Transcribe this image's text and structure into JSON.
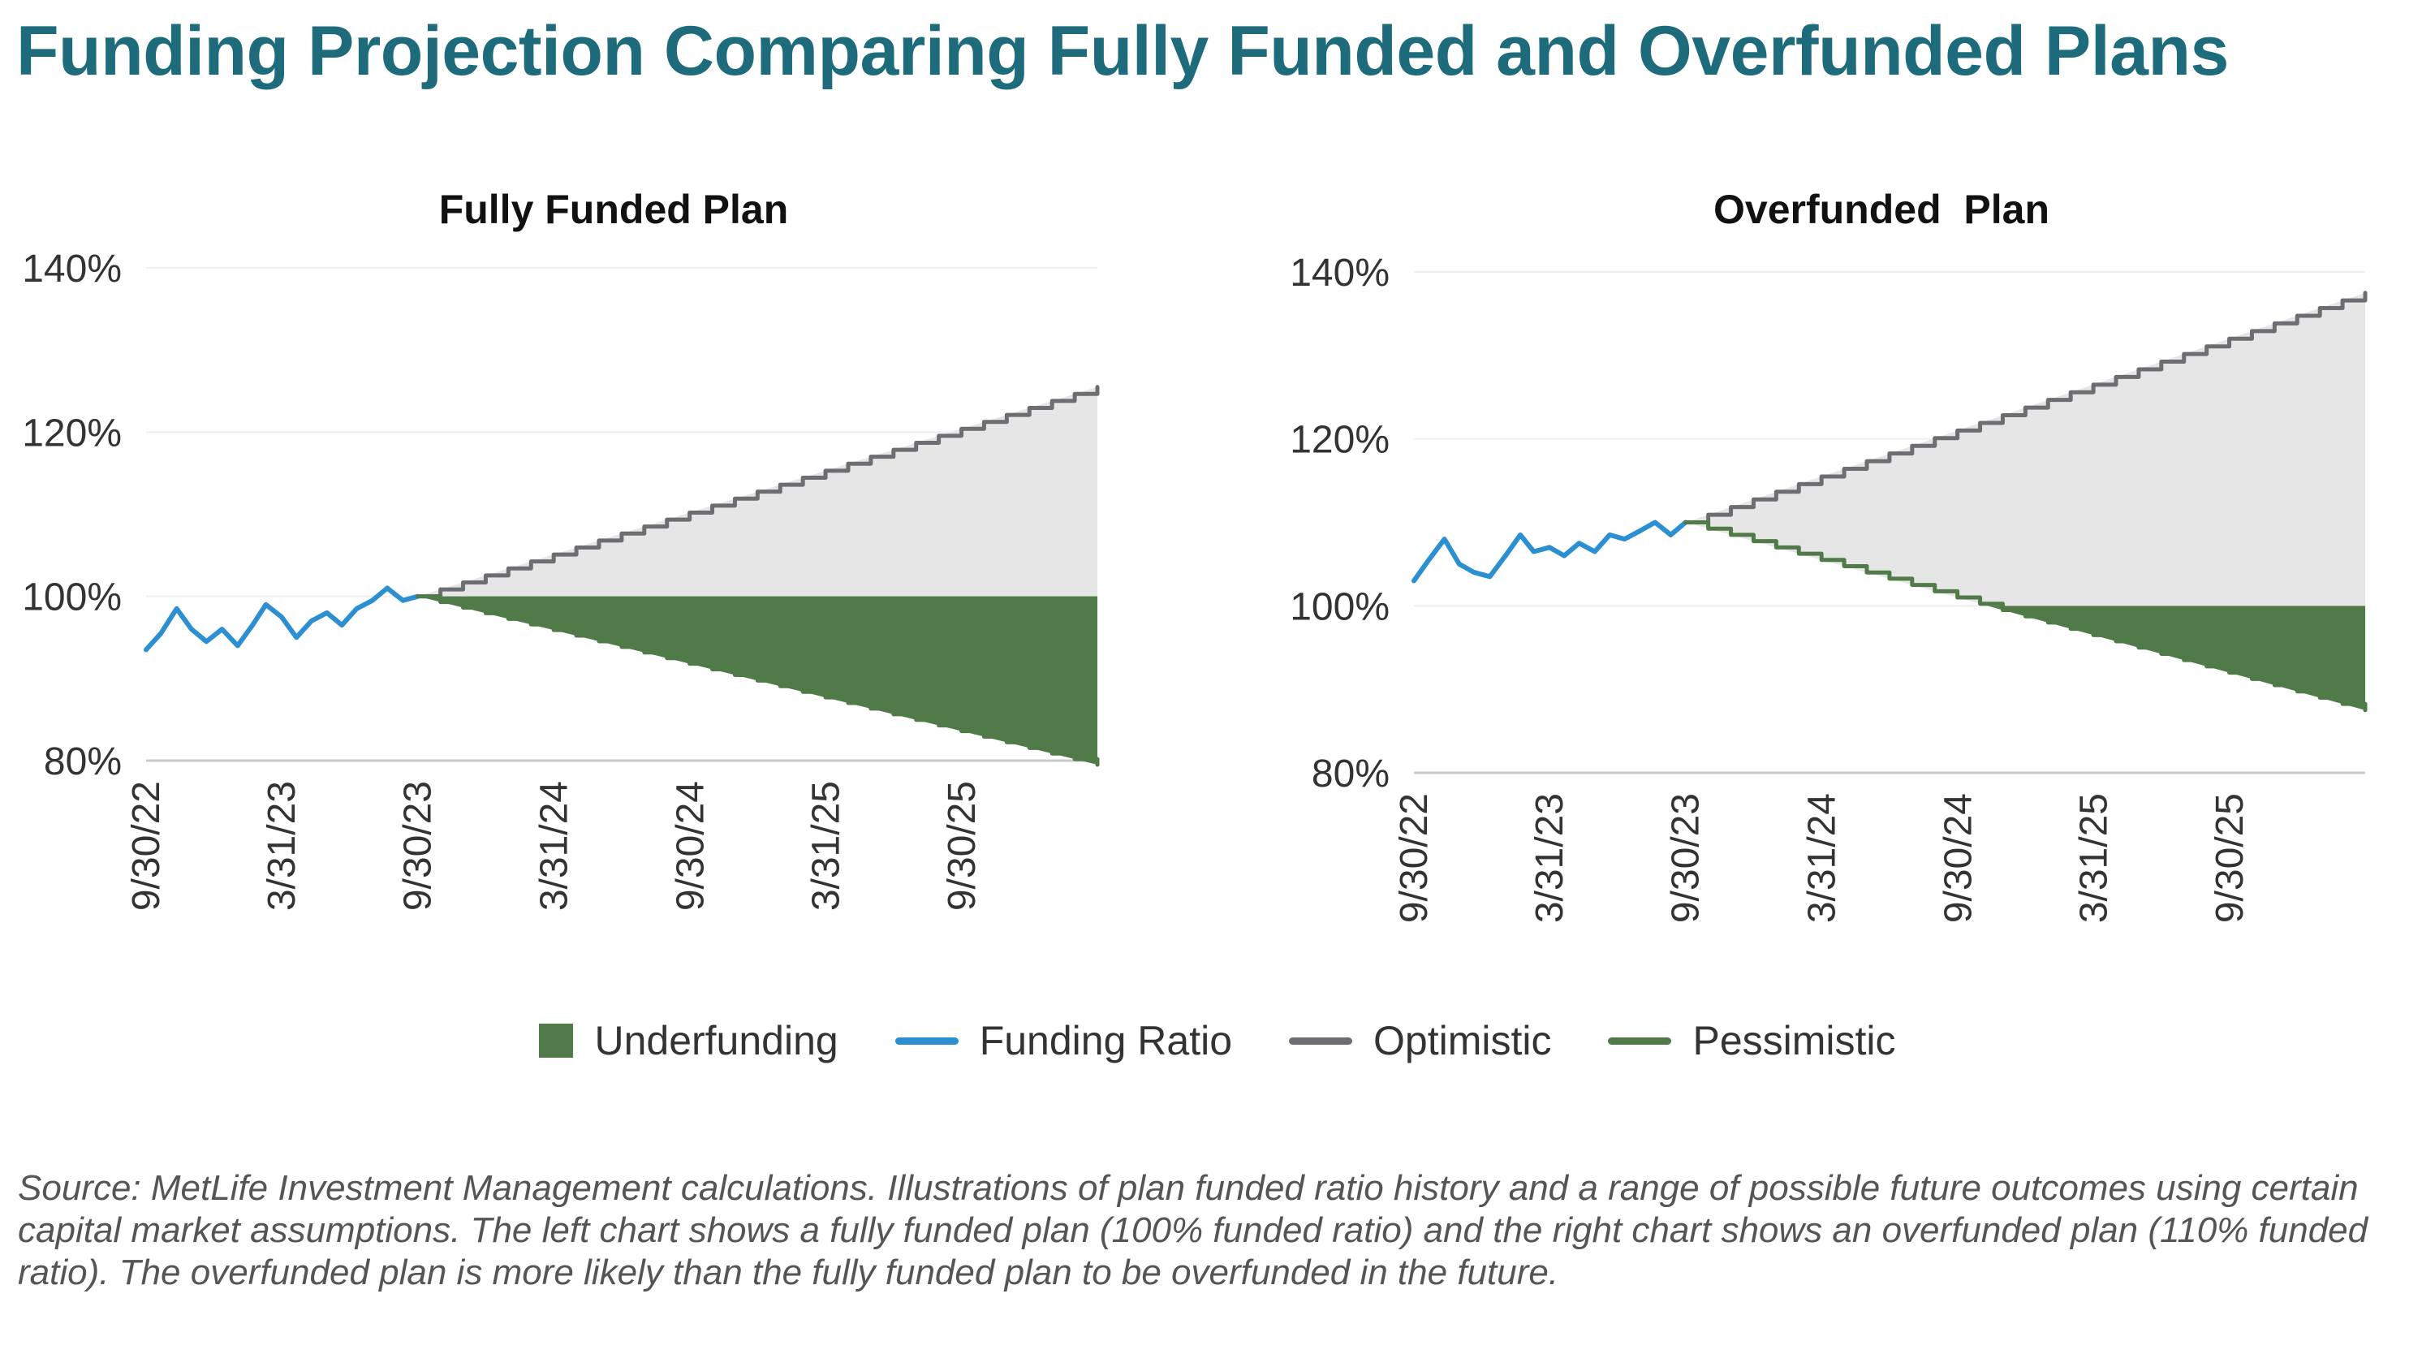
{
  "title": "Funding Projection Comparing Fully Funded and Overfunded Plans",
  "colors": {
    "title": "#1e6b7b",
    "funding_ratio": "#2b8fd1",
    "optimistic": "#6d6e71",
    "pessimistic": "#507b48",
    "underfunding": "#507b48",
    "projection_band": "#e6e6e6"
  },
  "legend": [
    {
      "label": "Underfunding",
      "swatch": "box",
      "color": "#507b48"
    },
    {
      "label": "Funding Ratio",
      "swatch": "line",
      "color": "#2b8fd1"
    },
    {
      "label": "Optimistic",
      "swatch": "line",
      "color": "#6d6e71"
    },
    {
      "label": "Pessimistic",
      "swatch": "line",
      "color": "#507b48"
    }
  ],
  "source": "Source: MetLife Investment Management calculations. Illustrations of plan funded ratio history and a range of possible future outcomes using certain capital market assumptions. The left chart shows a fully funded plan (100% funded ratio) and the right chart shows an overfunded plan (110% funded ratio). The overfunded plan is more likely than the fully funded plan to be overfunded in the future.",
  "chart_data": [
    {
      "type": "line",
      "title": "Fully Funded Plan",
      "xlabel": "",
      "ylabel": "",
      "x_start": "2022-09-30",
      "x_end": "2026-03-31",
      "x_tick_labels": [
        "9/30/22",
        "3/31/23",
        "9/30/23",
        "3/31/24",
        "9/30/24",
        "3/31/25",
        "9/30/25"
      ],
      "x_tick_dates": [
        "2022-09-30",
        "2023-03-31",
        "2023-09-30",
        "2024-03-31",
        "2024-09-30",
        "2025-03-31",
        "2025-09-30"
      ],
      "y_tick_labels": [
        "80%",
        "100%",
        "120%",
        "140%"
      ],
      "ylim": [
        80,
        140
      ],
      "grid": true,
      "funding_threshold": 100,
      "series": [
        {
          "name": "Funding Ratio",
          "points": [
            [
              "2022-09-30",
              93.5
            ],
            [
              "2022-10-20",
              95.5
            ],
            [
              "2022-11-10",
              98.5
            ],
            [
              "2022-11-30",
              96.0
            ],
            [
              "2022-12-20",
              94.5
            ],
            [
              "2023-01-10",
              96.0
            ],
            [
              "2023-01-31",
              94.0
            ],
            [
              "2023-02-20",
              96.5
            ],
            [
              "2023-03-10",
              99.0
            ],
            [
              "2023-03-31",
              97.5
            ],
            [
              "2023-04-20",
              95.0
            ],
            [
              "2023-05-10",
              97.0
            ],
            [
              "2023-05-31",
              98.0
            ],
            [
              "2023-06-20",
              96.5
            ],
            [
              "2023-07-10",
              98.5
            ],
            [
              "2023-07-31",
              99.5
            ],
            [
              "2023-08-20",
              101.0
            ],
            [
              "2023-09-10",
              99.5
            ],
            [
              "2023-09-30",
              100.0
            ]
          ]
        },
        {
          "name": "Optimistic",
          "points": [
            [
              "2023-09-30",
              100.0
            ],
            [
              "2026-03-31",
              125.5
            ]
          ]
        },
        {
          "name": "Pessimistic",
          "points": [
            [
              "2023-09-30",
              100.0
            ],
            [
              "2026-03-31",
              79.5
            ]
          ]
        }
      ]
    },
    {
      "type": "line",
      "title": "Overfunded  Plan",
      "xlabel": "",
      "ylabel": "",
      "x_start": "2022-09-30",
      "x_end": "2026-03-31",
      "x_tick_labels": [
        "9/30/22",
        "3/31/23",
        "9/30/23",
        "3/31/24",
        "9/30/24",
        "3/31/25",
        "9/30/25"
      ],
      "x_tick_dates": [
        "2022-09-30",
        "2023-03-31",
        "2023-09-30",
        "2024-03-31",
        "2024-09-30",
        "2025-03-31",
        "2025-09-30"
      ],
      "y_tick_labels": [
        "80%",
        "100%",
        "120%",
        "140%"
      ],
      "ylim": [
        80,
        140
      ],
      "grid": true,
      "funding_threshold": 100,
      "series": [
        {
          "name": "Funding Ratio",
          "points": [
            [
              "2022-09-30",
              103.0
            ],
            [
              "2022-10-20",
              105.5
            ],
            [
              "2022-11-10",
              108.0
            ],
            [
              "2022-11-30",
              105.0
            ],
            [
              "2022-12-20",
              104.0
            ],
            [
              "2023-01-10",
              103.5
            ],
            [
              "2023-01-31",
              106.0
            ],
            [
              "2023-02-20",
              108.5
            ],
            [
              "2023-03-10",
              106.5
            ],
            [
              "2023-03-31",
              107.0
            ],
            [
              "2023-04-20",
              106.0
            ],
            [
              "2023-05-10",
              107.5
            ],
            [
              "2023-05-31",
              106.5
            ],
            [
              "2023-06-20",
              108.5
            ],
            [
              "2023-07-10",
              108.0
            ],
            [
              "2023-07-31",
              109.0
            ],
            [
              "2023-08-20",
              110.0
            ],
            [
              "2023-09-10",
              108.5
            ],
            [
              "2023-09-30",
              110.0
            ]
          ]
        },
        {
          "name": "Optimistic",
          "points": [
            [
              "2023-09-30",
              110.0
            ],
            [
              "2026-03-31",
              137.5
            ]
          ]
        },
        {
          "name": "Pessimistic",
          "points": [
            [
              "2023-09-30",
              110.0
            ],
            [
              "2026-03-31",
              87.5
            ]
          ]
        }
      ]
    }
  ]
}
